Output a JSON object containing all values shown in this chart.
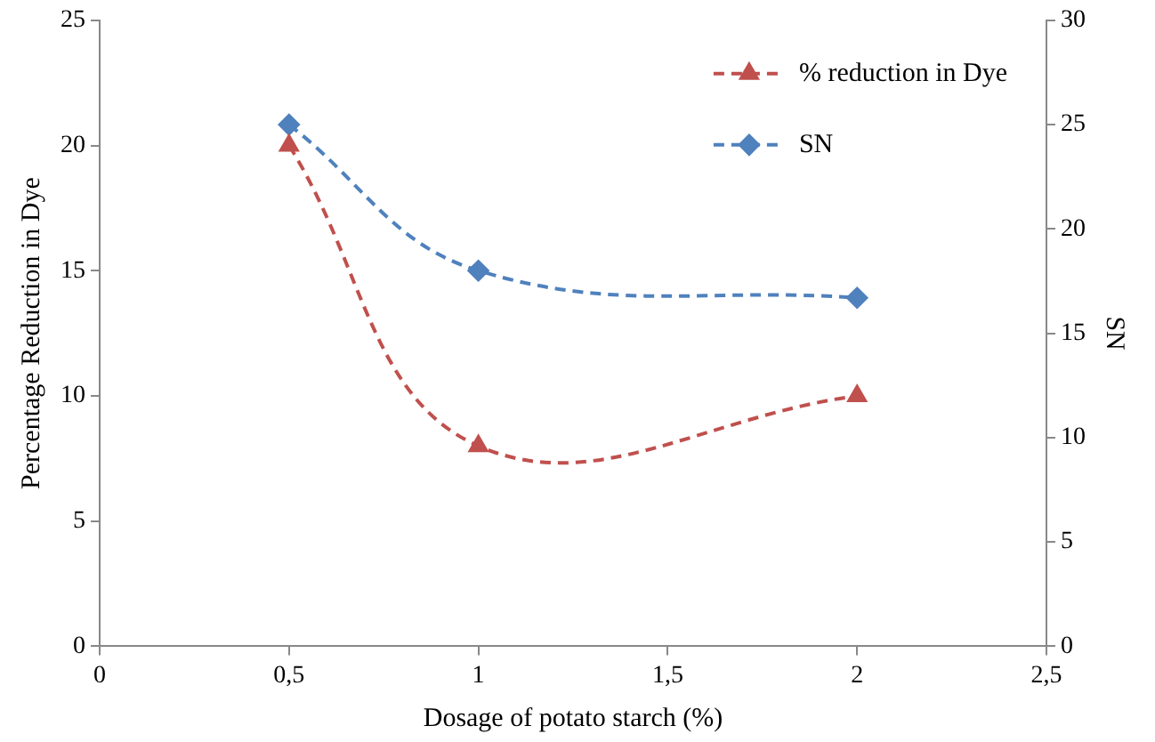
{
  "chart_data": {
    "type": "line",
    "xlabel": "Dosage of potato starch (%)",
    "ylabel": "Percentage Reduction in Dye",
    "y2label": "SN",
    "x": [
      0.5,
      1,
      2
    ],
    "series": [
      {
        "name": "% reduction in Dye",
        "color": "#c0504d",
        "values": [
          20,
          8,
          10
        ],
        "marker": "triangle",
        "line_style": "dashed"
      },
      {
        "name": "SN",
        "color": "#4f81bd",
        "values": [
          25,
          18,
          16.7
        ],
        "axis": "y2",
        "marker": "diamond",
        "line_style": "dashed"
      }
    ],
    "xlim": [
      0,
      2.5
    ],
    "xticks": [
      0,
      {
        "value": 0.5,
        "label": "0,5"
      },
      1,
      {
        "value": 1.5,
        "label": "1,5"
      },
      2,
      {
        "value": 2.5,
        "label": "2,5"
      }
    ],
    "ylim": [
      0,
      25
    ],
    "yticks": [
      0,
      5,
      10,
      15,
      20,
      25
    ],
    "y2lim": [
      0,
      30
    ],
    "y2ticks": [
      0,
      5,
      10,
      15,
      20,
      25,
      30
    ],
    "grid": false,
    "legend": "top right"
  }
}
